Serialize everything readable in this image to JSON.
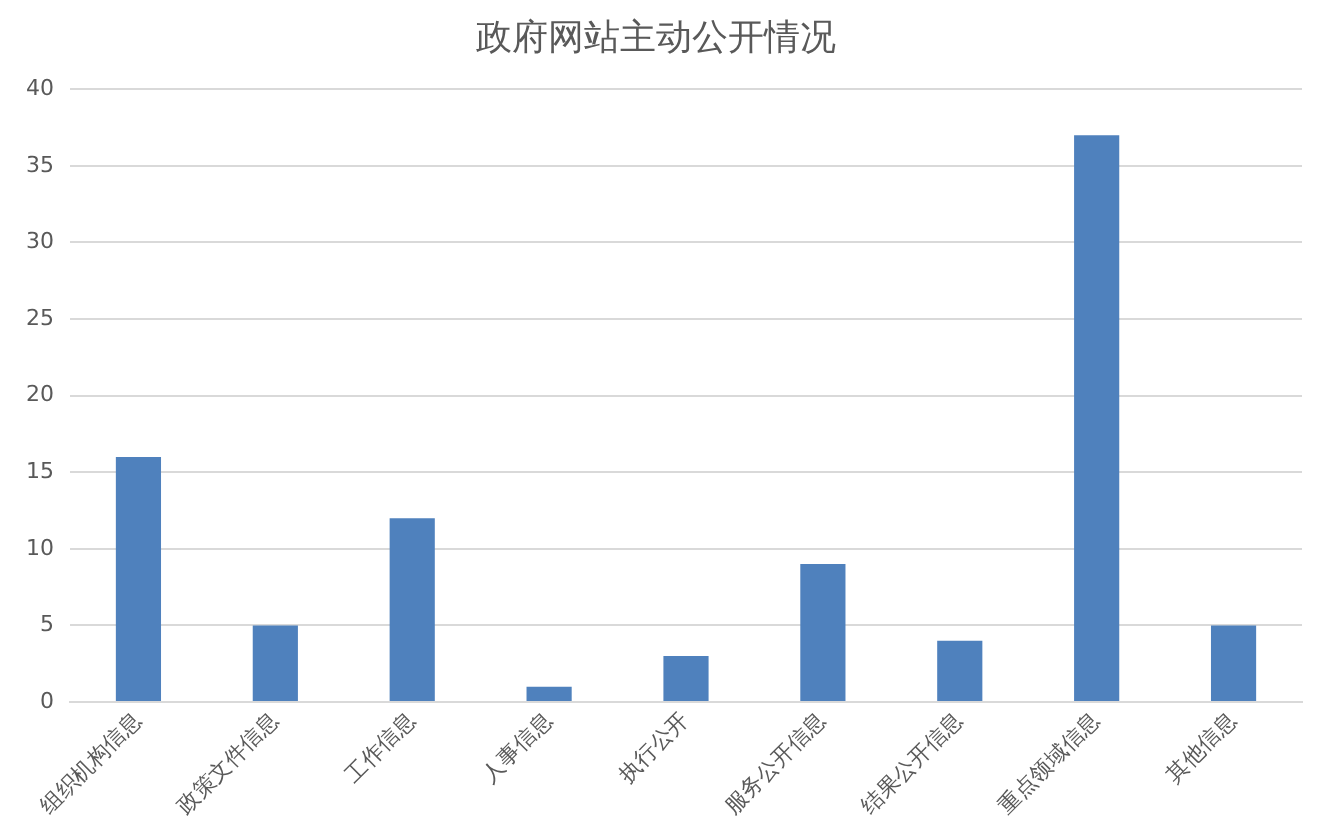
{
  "chart_data": {
    "type": "bar",
    "title": "政府网站主动公开情况",
    "categories": [
      "组织机构信息",
      "政策文件信息",
      "工作信息",
      "人事信息",
      "执行公开",
      "服务公开信息",
      "结果公开信息",
      "重点领域信息",
      "其他信息"
    ],
    "values": [
      16,
      5,
      12,
      1,
      3,
      9,
      4,
      37,
      5
    ],
    "color": "#4f81bd",
    "ylim": [
      0,
      40
    ],
    "yticks": [
      0,
      5,
      10,
      15,
      20,
      25,
      30,
      35,
      40
    ],
    "grid": "y",
    "legend": false
  }
}
